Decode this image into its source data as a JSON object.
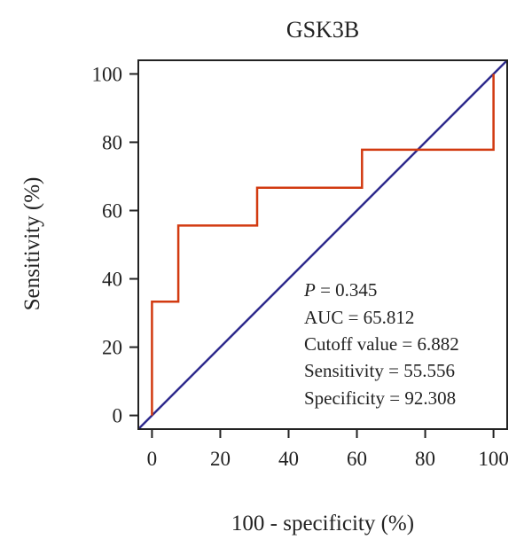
{
  "chart_data": {
    "type": "line",
    "title": "GSK3B",
    "xlabel": "100 - specificity (%)",
    "ylabel": "Sensitivity (%)",
    "xlim": [
      -4,
      104
    ],
    "ylim": [
      -4,
      104
    ],
    "xticks": [
      0,
      20,
      40,
      60,
      80,
      100
    ],
    "yticks": [
      0,
      20,
      40,
      60,
      80,
      100
    ],
    "grid": false,
    "series": [
      {
        "color": "#d23a10",
        "style": "step",
        "points": [
          [
            0,
            0
          ],
          [
            0,
            33.3
          ],
          [
            7.7,
            33.3
          ],
          [
            7.7,
            55.6
          ],
          [
            30.8,
            55.6
          ],
          [
            30.8,
            66.7
          ],
          [
            61.5,
            66.7
          ],
          [
            61.5,
            77.8
          ],
          [
            100,
            77.8
          ],
          [
            100,
            100
          ]
        ]
      },
      {
        "color": "#2e2a8c",
        "style": "diagonal",
        "points": [
          [
            -4,
            -4
          ],
          [
            104,
            104
          ]
        ]
      }
    ],
    "annotations": {
      "p_label": "P",
      "p_value": " = 0.345",
      "auc": "AUC = 65.812",
      "cutoff": "Cutoff value = 6.882",
      "sensitivity": "Sensitivity = 55.556",
      "specificity": "Specificity = 92.308"
    }
  }
}
